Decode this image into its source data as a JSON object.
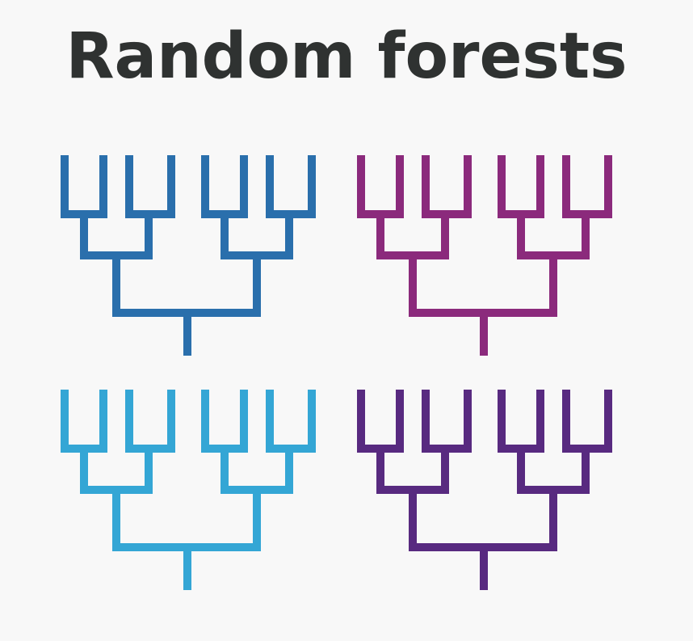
{
  "title": "Random forests",
  "trees": [
    {
      "color": "#2a6fac"
    },
    {
      "color": "#8b2a7c"
    },
    {
      "color": "#34a6d5"
    },
    {
      "color": "#582a80"
    }
  ]
}
